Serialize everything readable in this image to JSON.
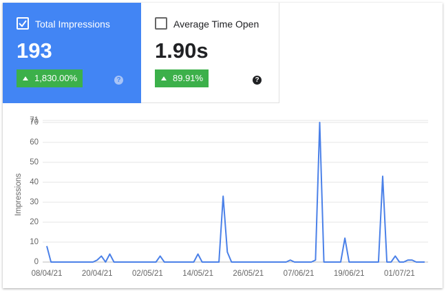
{
  "cards": [
    {
      "label": "Total Impressions",
      "value": "193",
      "change": "1,830.00%",
      "checked": true
    },
    {
      "label": "Average Time Open",
      "value": "1.90s",
      "change": "89.91%",
      "checked": false
    }
  ],
  "chart_data": {
    "type": "line",
    "y_label": "Impressions",
    "color": "#4a80e8",
    "categories": [
      "08/04/21",
      null,
      null,
      null,
      null,
      null,
      null,
      null,
      null,
      null,
      null,
      null,
      "20/04/21",
      null,
      null,
      null,
      null,
      null,
      null,
      null,
      null,
      null,
      null,
      null,
      "02/05/21",
      null,
      null,
      null,
      null,
      null,
      null,
      null,
      null,
      null,
      null,
      null,
      "14/05/21",
      null,
      null,
      null,
      null,
      null,
      null,
      null,
      null,
      null,
      null,
      null,
      "26/05/21",
      null,
      null,
      null,
      null,
      null,
      null,
      null,
      null,
      null,
      null,
      null,
      "07/06/21",
      null,
      null,
      null,
      null,
      null,
      null,
      null,
      null,
      null,
      null,
      null,
      "19/06/21",
      null,
      null,
      null,
      null,
      null,
      null,
      null,
      null,
      null,
      null,
      null,
      "01/07/21",
      null,
      null,
      null,
      null,
      null,
      null
    ],
    "values": [
      8,
      0,
      0,
      0,
      0,
      0,
      0,
      0,
      0,
      0,
      0,
      0,
      1,
      3,
      0,
      4,
      0,
      0,
      0,
      0,
      0,
      0,
      0,
      0,
      0,
      0,
      0,
      3,
      0,
      0,
      0,
      0,
      0,
      0,
      0,
      0,
      4,
      0,
      0,
      0,
      0,
      0,
      33,
      5,
      0,
      0,
      0,
      0,
      0,
      0,
      0,
      0,
      0,
      0,
      0,
      0,
      0,
      0,
      1,
      0,
      0,
      0,
      0,
      0,
      1,
      70,
      0,
      0,
      0,
      0,
      0,
      12,
      0,
      0,
      0,
      0,
      0,
      0,
      0,
      0,
      43,
      0,
      0,
      3,
      0,
      0,
      1,
      1,
      0,
      0,
      0
    ],
    "ylim": [
      0,
      71
    ],
    "yticks": [
      0,
      10,
      20,
      30,
      40,
      50,
      60,
      70,
      71
    ],
    "grid": true
  }
}
